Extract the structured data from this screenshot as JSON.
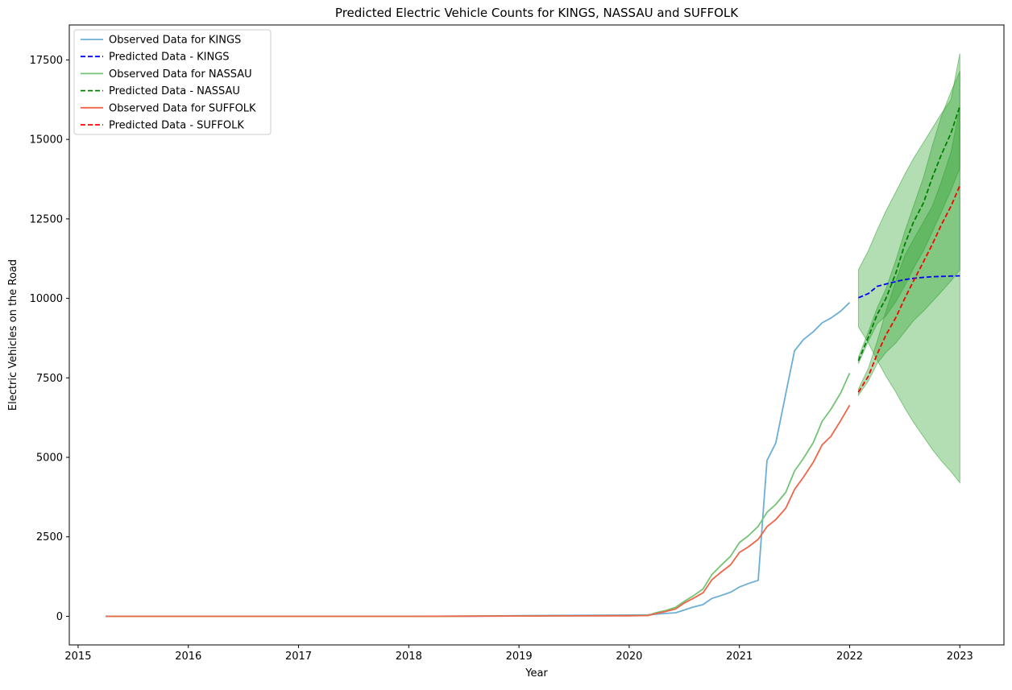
{
  "chart_data": {
    "type": "line",
    "title": "Predicted Electric Vehicle Counts for KINGS, NASSAU and SUFFOLK",
    "xlabel": "Year",
    "ylabel": "Electric Vehicles on the Road",
    "xlim": [
      2014.92,
      2023.4
    ],
    "ylim": [
      -900,
      18600
    ],
    "x_ticks": [
      2015,
      2016,
      2017,
      2018,
      2019,
      2020,
      2021,
      2022,
      2023
    ],
    "x_tick_labels": [
      "2015",
      "2016",
      "2017",
      "2018",
      "2019",
      "2020",
      "2021",
      "2022",
      "2023"
    ],
    "y_ticks": [
      0,
      2500,
      5000,
      7500,
      10000,
      12500,
      15000,
      17500
    ],
    "y_tick_labels": [
      "0",
      "2500",
      "5000",
      "7500",
      "10000",
      "12500",
      "15000",
      "17500"
    ],
    "grid": false,
    "legend_position": "top-left",
    "series": [
      {
        "name": "Observed Data for KINGS",
        "style": "solid",
        "color": "#6baed6",
        "points": [
          [
            2015.25,
            0
          ],
          [
            2016,
            0
          ],
          [
            2017,
            0
          ],
          [
            2018,
            0
          ],
          [
            2018.5,
            5
          ],
          [
            2019,
            20
          ],
          [
            2019.5,
            30
          ],
          [
            2020,
            40
          ],
          [
            2020.17,
            45
          ],
          [
            2020.25,
            70
          ],
          [
            2020.33,
            90
          ],
          [
            2020.42,
            110
          ],
          [
            2020.5,
            200
          ],
          [
            2020.58,
            290
          ],
          [
            2020.67,
            370
          ],
          [
            2020.75,
            560
          ],
          [
            2020.83,
            650
          ],
          [
            2020.92,
            760
          ],
          [
            2021,
            920
          ],
          [
            2021.08,
            1030
          ],
          [
            2021.17,
            1130
          ],
          [
            2021.25,
            4900
          ],
          [
            2021.33,
            5450
          ],
          [
            2021.42,
            7000
          ],
          [
            2021.5,
            8350
          ],
          [
            2021.58,
            8700
          ],
          [
            2021.67,
            8950
          ],
          [
            2021.75,
            9230
          ],
          [
            2021.83,
            9380
          ],
          [
            2021.92,
            9600
          ],
          [
            2022,
            9870
          ]
        ]
      },
      {
        "name": "Predicted Data - KINGS",
        "style": "dashed",
        "color": "#0000ff",
        "points": [
          [
            2022.08,
            10020
          ],
          [
            2022.17,
            10150
          ],
          [
            2022.25,
            10380
          ],
          [
            2022.33,
            10450
          ],
          [
            2022.42,
            10530
          ],
          [
            2022.5,
            10590
          ],
          [
            2022.58,
            10630
          ],
          [
            2022.67,
            10660
          ],
          [
            2022.75,
            10680
          ],
          [
            2022.83,
            10690
          ],
          [
            2022.92,
            10700
          ],
          [
            2023,
            10710
          ]
        ]
      },
      {
        "name": "Observed Data for NASSAU",
        "style": "solid",
        "color": "#74c476",
        "points": [
          [
            2015.25,
            0
          ],
          [
            2016,
            0
          ],
          [
            2017,
            0
          ],
          [
            2018,
            0
          ],
          [
            2018.5,
            5
          ],
          [
            2019,
            10
          ],
          [
            2019.5,
            15
          ],
          [
            2020,
            20
          ],
          [
            2020.17,
            30
          ],
          [
            2020.25,
            120
          ],
          [
            2020.33,
            180
          ],
          [
            2020.42,
            280
          ],
          [
            2020.5,
            470
          ],
          [
            2020.58,
            640
          ],
          [
            2020.67,
            860
          ],
          [
            2020.75,
            1310
          ],
          [
            2020.83,
            1590
          ],
          [
            2020.92,
            1890
          ],
          [
            2021,
            2320
          ],
          [
            2021.08,
            2530
          ],
          [
            2021.17,
            2830
          ],
          [
            2021.25,
            3270
          ],
          [
            2021.33,
            3520
          ],
          [
            2021.42,
            3900
          ],
          [
            2021.5,
            4570
          ],
          [
            2021.58,
            4960
          ],
          [
            2021.67,
            5460
          ],
          [
            2021.75,
            6130
          ],
          [
            2021.83,
            6510
          ],
          [
            2021.92,
            7030
          ],
          [
            2022,
            7650
          ]
        ]
      },
      {
        "name": "Predicted Data - NASSAU",
        "style": "dashed",
        "color": "#008000",
        "points": [
          [
            2022.08,
            8040
          ],
          [
            2022.17,
            8780
          ],
          [
            2022.25,
            9500
          ],
          [
            2022.33,
            10000
          ],
          [
            2022.42,
            10800
          ],
          [
            2022.5,
            11700
          ],
          [
            2022.58,
            12400
          ],
          [
            2022.67,
            13000
          ],
          [
            2022.75,
            13800
          ],
          [
            2022.83,
            14500
          ],
          [
            2022.92,
            15200
          ],
          [
            2023,
            16050
          ]
        ]
      },
      {
        "name": "Observed Data for SUFFOLK",
        "style": "solid",
        "color": "#ef6548",
        "points": [
          [
            2015.25,
            0
          ],
          [
            2016,
            0
          ],
          [
            2017,
            0
          ],
          [
            2018,
            0
          ],
          [
            2018.5,
            5
          ],
          [
            2019,
            10
          ],
          [
            2019.5,
            15
          ],
          [
            2020,
            18
          ],
          [
            2020.17,
            25
          ],
          [
            2020.25,
            90
          ],
          [
            2020.33,
            150
          ],
          [
            2020.42,
            230
          ],
          [
            2020.5,
            420
          ],
          [
            2020.58,
            560
          ],
          [
            2020.67,
            740
          ],
          [
            2020.75,
            1150
          ],
          [
            2020.83,
            1380
          ],
          [
            2020.92,
            1620
          ],
          [
            2021,
            2010
          ],
          [
            2021.08,
            2180
          ],
          [
            2021.17,
            2420
          ],
          [
            2021.25,
            2820
          ],
          [
            2021.33,
            3040
          ],
          [
            2021.42,
            3400
          ],
          [
            2021.5,
            3990
          ],
          [
            2021.58,
            4370
          ],
          [
            2021.67,
            4840
          ],
          [
            2021.75,
            5390
          ],
          [
            2021.83,
            5660
          ],
          [
            2021.92,
            6160
          ],
          [
            2022,
            6640
          ]
        ]
      },
      {
        "name": "Predicted Data - SUFFOLK",
        "style": "dashed",
        "color": "#ff0000",
        "points": [
          [
            2022.08,
            7050
          ],
          [
            2022.17,
            7550
          ],
          [
            2022.25,
            8250
          ],
          [
            2022.33,
            8850
          ],
          [
            2022.42,
            9400
          ],
          [
            2022.5,
            10000
          ],
          [
            2022.58,
            10550
          ],
          [
            2022.67,
            11150
          ],
          [
            2022.75,
            11700
          ],
          [
            2022.83,
            12300
          ],
          [
            2022.92,
            12900
          ],
          [
            2023,
            13550
          ]
        ]
      }
    ],
    "bands": [
      {
        "color": "#2ca02c",
        "opacity": 0.36,
        "x": [
          2022.08,
          2022.17,
          2022.25,
          2022.33,
          2022.42,
          2022.5,
          2022.58,
          2022.67,
          2022.75,
          2022.83,
          2022.92,
          2023
        ],
        "upper": [
          10900,
          11500,
          12150,
          12750,
          13350,
          13900,
          14400,
          14900,
          15350,
          15800,
          16250,
          17700
        ],
        "lower": [
          9100,
          8600,
          8050,
          7550,
          7050,
          6550,
          6100,
          5650,
          5250,
          4900,
          4550,
          4200
        ]
      },
      {
        "color": "#2ca02c",
        "opacity": 0.36,
        "x": [
          2022.08,
          2022.17,
          2022.25,
          2022.33,
          2022.42,
          2022.5,
          2022.58,
          2022.67,
          2022.75,
          2022.83,
          2022.92,
          2023
        ],
        "upper": [
          8150,
          8950,
          9700,
          10300,
          11200,
          12100,
          12900,
          13800,
          14800,
          15700,
          16500,
          17150
        ],
        "lower": [
          7950,
          8650,
          9200,
          9450,
          9900,
          10400,
          10950,
          11500,
          12100,
          12700,
          13400,
          14100
        ]
      },
      {
        "color": "#2ca02c",
        "opacity": 0.36,
        "x": [
          2022.08,
          2022.17,
          2022.25,
          2022.33,
          2022.42,
          2022.5,
          2022.58,
          2022.67,
          2022.75,
          2022.83,
          2022.92,
          2023
        ],
        "upper": [
          7150,
          7800,
          8650,
          9600,
          10550,
          11350,
          11850,
          12400,
          12900,
          13650,
          14600,
          16000
        ],
        "lower": [
          6950,
          7400,
          7950,
          8300,
          8600,
          8950,
          9300,
          9600,
          9900,
          10200,
          10550,
          10900
        ]
      }
    ]
  }
}
